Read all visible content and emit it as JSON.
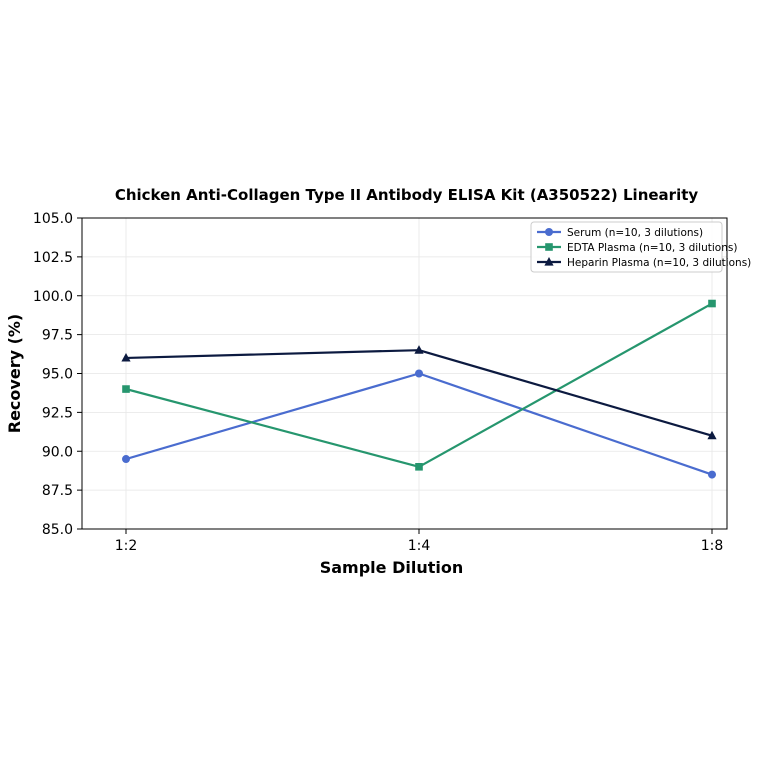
{
  "chart_data": {
    "type": "line",
    "title": "Chicken Anti-Collagen Type II Antibody ELISA Kit (A350522) Linearity",
    "xlabel": "Sample Dilution",
    "ylabel": "Recovery (%)",
    "categories": [
      "1:2",
      "1:4",
      "1:8"
    ],
    "ylim": [
      85.0,
      105.0
    ],
    "yticks": [
      "85.0",
      "87.5",
      "90.0",
      "92.5",
      "95.0",
      "97.5",
      "100.0",
      "102.5",
      "105.0"
    ],
    "grid": true,
    "legend_position": "top-right",
    "series": [
      {
        "name": "Serum (n=10, 3 dilutions)",
        "values": [
          89.5,
          95.0,
          88.5
        ],
        "color": "#4a6ccf",
        "marker": "circle"
      },
      {
        "name": "EDTA Plasma (n=10, 3 dilutions)",
        "values": [
          94.0,
          89.0,
          99.5
        ],
        "color": "#26966e",
        "marker": "square"
      },
      {
        "name": "Heparin Plasma (n=10, 3 dilutions)",
        "values": [
          96.0,
          96.5,
          91.0
        ],
        "color": "#0c1a40",
        "marker": "triangle"
      }
    ]
  }
}
